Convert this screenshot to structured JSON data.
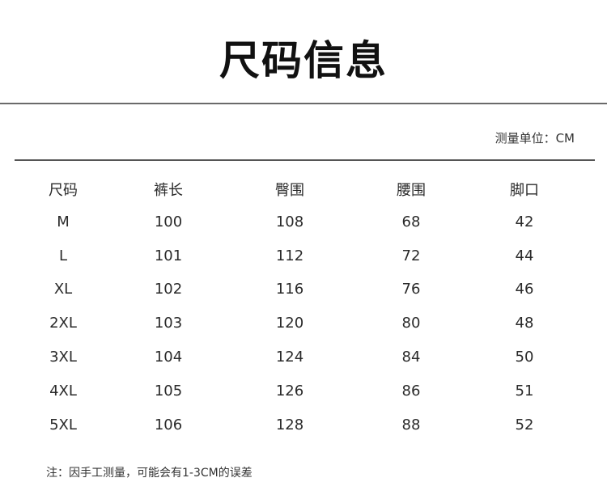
{
  "title": "尺码信息",
  "unit_label": "测量单位：CM",
  "table": {
    "headers": [
      "尺码",
      "裤长",
      "臀围",
      "腰围",
      "脚口"
    ],
    "rows": [
      [
        "M",
        "100",
        "108",
        "68",
        "42"
      ],
      [
        "L",
        "101",
        "112",
        "72",
        "44"
      ],
      [
        "XL",
        "102",
        "116",
        "76",
        "46"
      ],
      [
        "2XL",
        "103",
        "120",
        "80",
        "48"
      ],
      [
        "3XL",
        "104",
        "124",
        "84",
        "50"
      ],
      [
        "4XL",
        "105",
        "126",
        "86",
        "51"
      ],
      [
        "5XL",
        "106",
        "128",
        "88",
        "52"
      ]
    ]
  },
  "note": "注：因手工测量，可能会有1-3CM的误差"
}
